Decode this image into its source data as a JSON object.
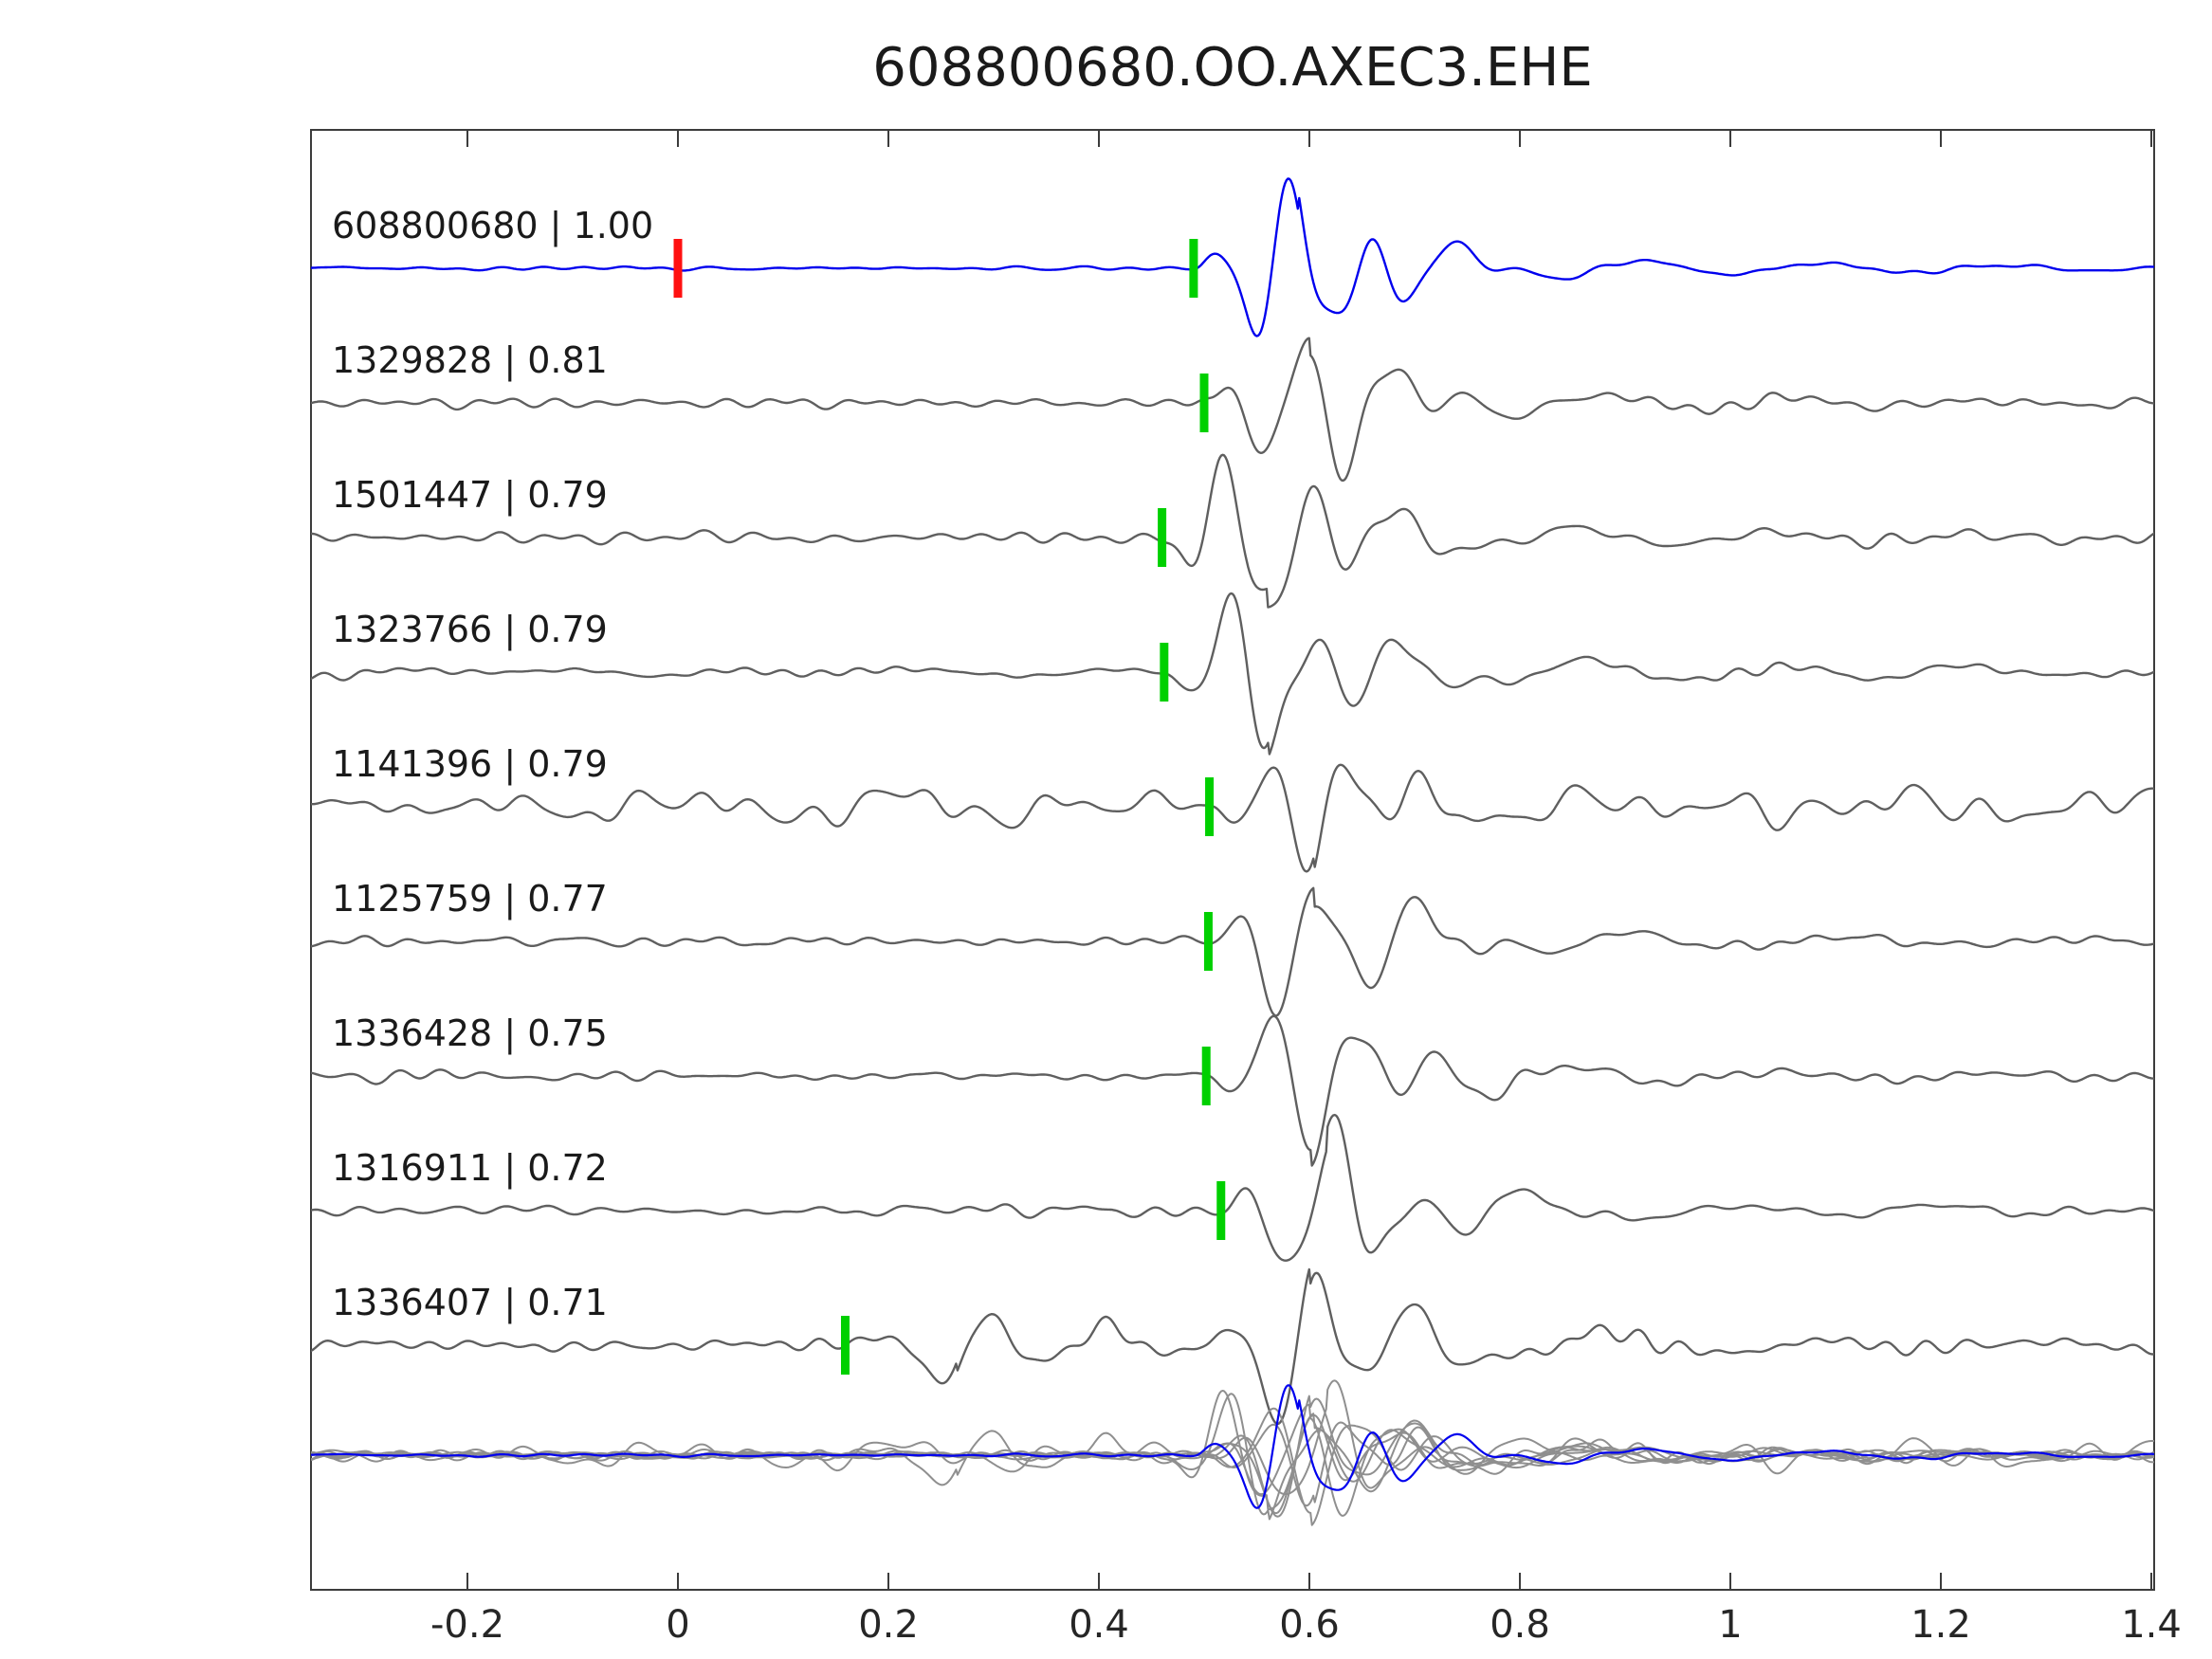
{
  "chart_data": {
    "type": "line",
    "title": "608800680.OO.AXEC3.EHE",
    "xlabel": "",
    "ylabel": "",
    "xlim": [
      -0.35,
      1.4
    ],
    "xticks": [
      -0.2,
      0,
      0.2,
      0.4,
      0.6,
      0.8,
      1.0,
      1.2,
      1.4
    ],
    "xtick_labels": [
      "-0.2",
      "0",
      "0.2",
      "0.4",
      "0.6",
      "0.8",
      "1",
      "1.2",
      "1.4"
    ],
    "grid": false,
    "legend": null,
    "description": "Template-matching / cross-correlation waveform panel: reference event trace (blue) on top, 8 matched event traces (gray) below with correlation coefficients, green bars mark picks, red bar marks reference zero time, bottom row shows all traces superimposed",
    "colors": {
      "reference_trace": "#0000ee",
      "trace": "#5f5f5f",
      "overlay_trace": "#8f8f8f",
      "pick_marker": "#00d000",
      "reference_pick_marker": "#ff1111",
      "frame": "#3c3c3c",
      "tick_label": "#262626"
    },
    "traces": [
      {
        "id": "608800680",
        "correlation": 1.0,
        "label": "608800680 | 1.00",
        "pick_time": 0.49,
        "reference_pick_time": 0.0,
        "onset": 0.49,
        "polarity": 1,
        "noise_amp": 2.5,
        "burst_amp": 76,
        "freq": 13,
        "seed": 3,
        "is_reference": true
      },
      {
        "id": "1329828",
        "correlation": 0.81,
        "label": "1329828 | 0.81",
        "pick_time": 0.5,
        "onset": 0.5,
        "polarity": 1,
        "noise_amp": 7,
        "burst_amp": 70,
        "freq": 12.5,
        "seed": 12
      },
      {
        "id": "1501447",
        "correlation": 0.79,
        "label": "1501447 | 0.79",
        "pick_time": 0.46,
        "onset": 0.46,
        "polarity": -1,
        "noise_amp": 7,
        "burst_amp": 78,
        "freq": 12,
        "seed": 23
      },
      {
        "id": "1323766",
        "correlation": 0.79,
        "label": "1323766 | 0.79",
        "pick_time": 0.462,
        "onset": 0.462,
        "polarity": -1,
        "noise_amp": 7,
        "burst_amp": 74,
        "freq": 12,
        "seed": 34
      },
      {
        "id": "1141396",
        "correlation": 0.79,
        "label": "1141396 | 0.79",
        "pick_time": 0.505,
        "onset": 0.505,
        "polarity": -1,
        "noise_amp": 23,
        "burst_amp": 62,
        "freq": 13,
        "seed": 45
      },
      {
        "id": "1125759",
        "correlation": 0.77,
        "label": "1125759 | 0.77",
        "pick_time": 0.504,
        "onset": 0.504,
        "polarity": 1,
        "noise_amp": 6,
        "burst_amp": 68,
        "freq": 11,
        "seed": 56
      },
      {
        "id": "1336428",
        "correlation": 0.75,
        "label": "1336428 | 0.75",
        "pick_time": 0.502,
        "onset": 0.502,
        "polarity": -1,
        "noise_amp": 7,
        "burst_amp": 66,
        "freq": 12,
        "seed": 67
      },
      {
        "id": "1316911",
        "correlation": 0.72,
        "label": "1316911 | 0.72",
        "pick_time": 0.516,
        "onset": 0.516,
        "polarity": 1,
        "noise_amp": 7,
        "burst_amp": 72,
        "freq": 11.5,
        "seed": 78
      },
      {
        "id": "1336407",
        "correlation": 0.71,
        "label": "1336407 | 0.71",
        "pick_time": 0.159,
        "onset": 0.5,
        "polarity": 1,
        "noise_amp": 9,
        "burst_amp": 78,
        "freq": 11,
        "seed": 89,
        "early_burst": {
          "time": 0.165,
          "amp": 36,
          "freq": 9
        }
      }
    ],
    "overlay": {
      "description": "all traces superimposed, reference trace in blue on top",
      "amplitude_scale": 0.78
    }
  }
}
